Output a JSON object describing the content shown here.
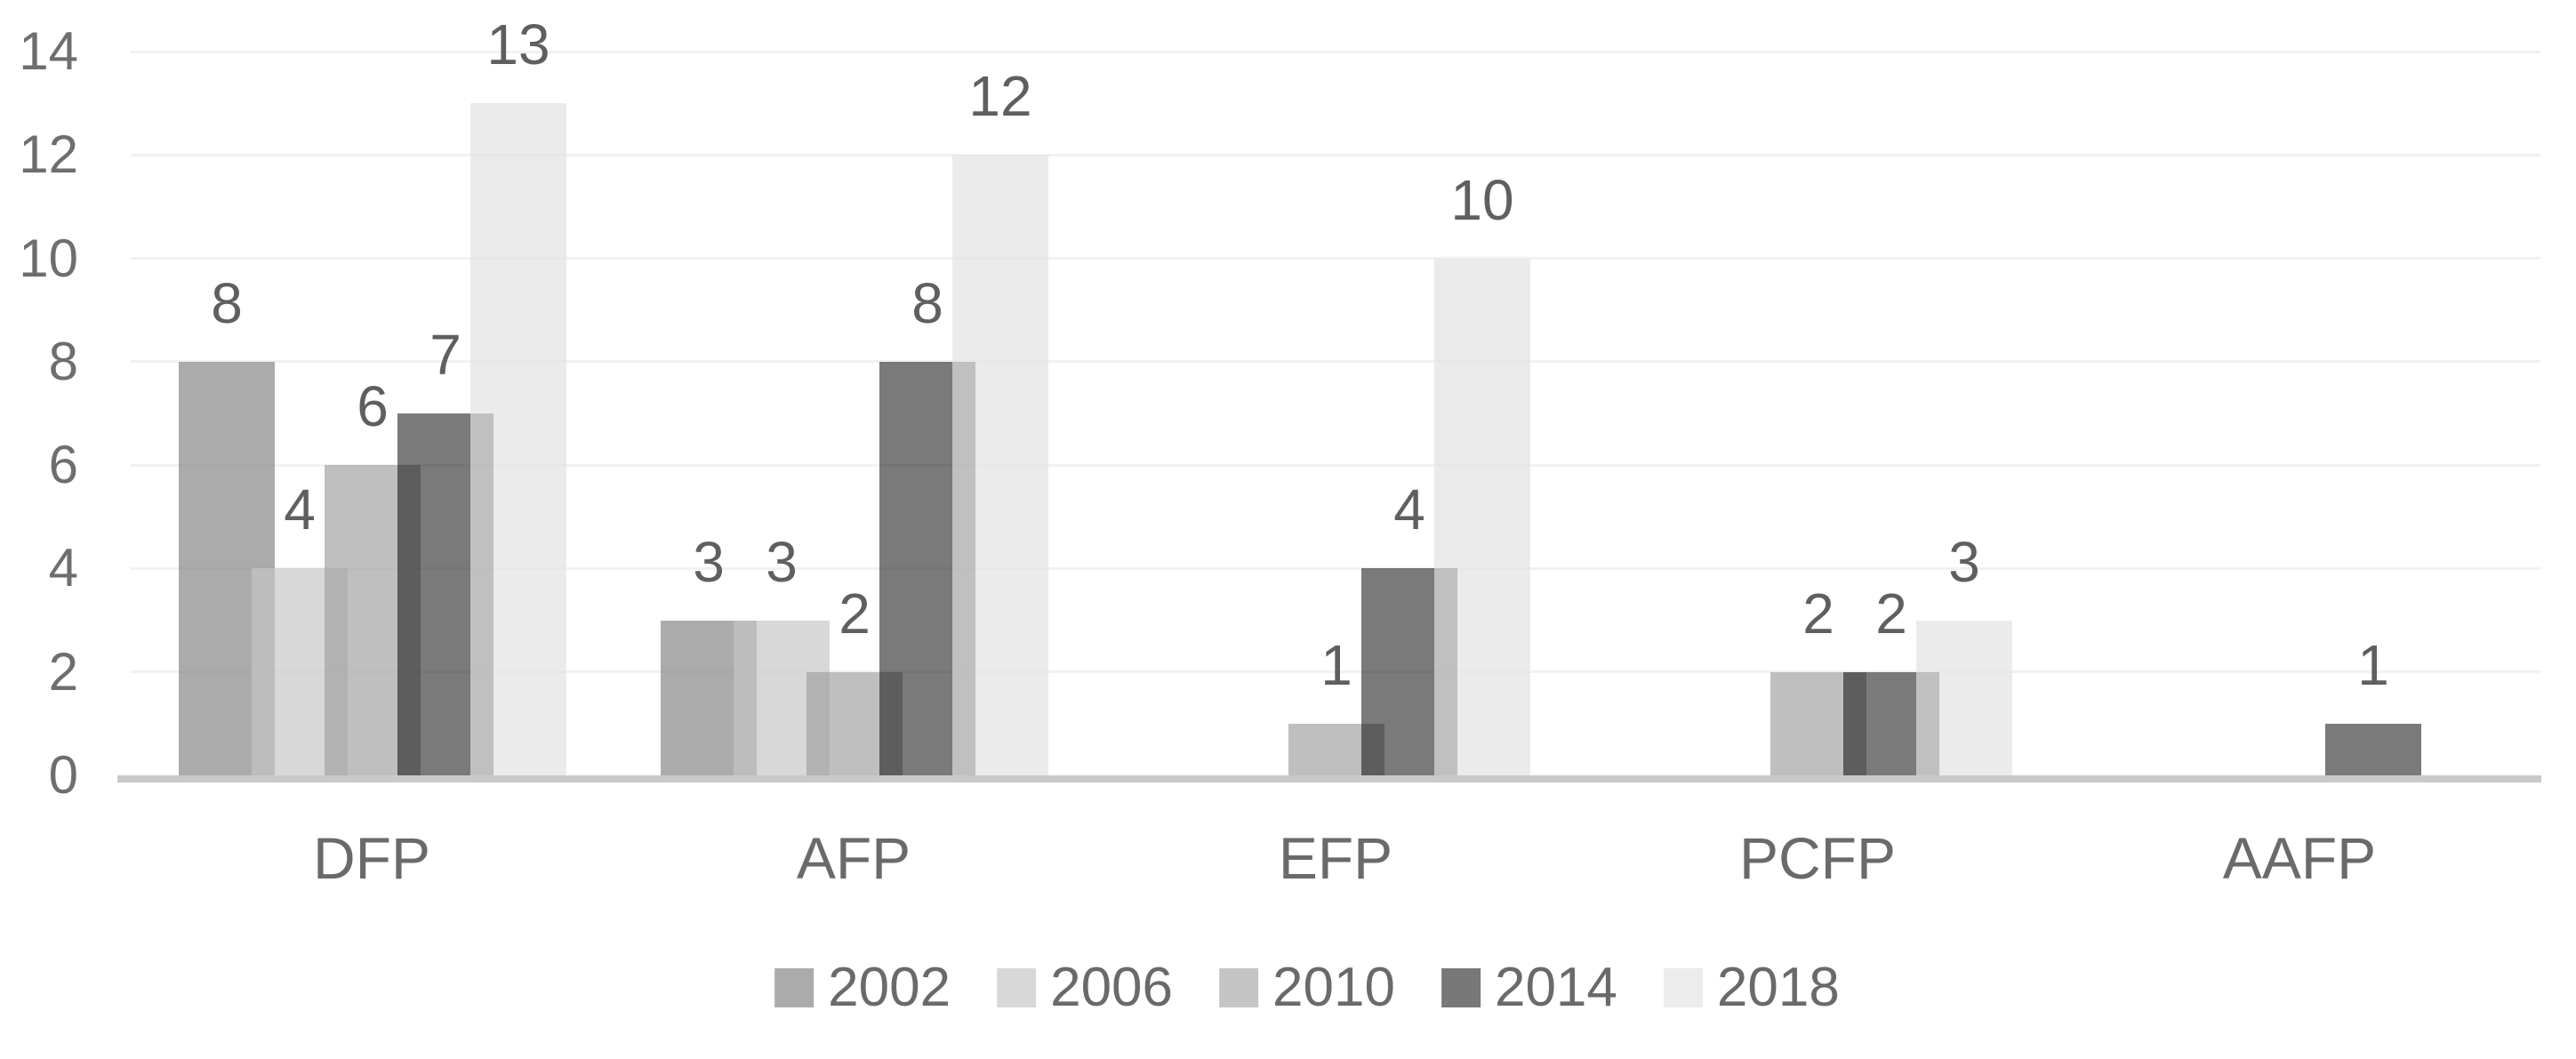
{
  "chart_data": {
    "type": "bar",
    "title": "",
    "xlabel": "",
    "ylabel": "",
    "categories": [
      "DFP",
      "AFP",
      "EFP",
      "PCFP",
      "AAFP"
    ],
    "series": [
      {
        "name": "2002",
        "values": [
          8,
          3,
          0,
          0,
          0
        ],
        "legend_color": "#ababab",
        "fill_rgba": "rgba(135,135,135,0.70)"
      },
      {
        "name": "2006",
        "values": [
          4,
          3,
          0,
          0,
          0
        ],
        "legend_color": "#d8d8d8",
        "fill_rgba": "rgba(197,197,197,0.68)"
      },
      {
        "name": "2010",
        "values": [
          6,
          2,
          1,
          2,
          0
        ],
        "legend_color": "#c5c5c5",
        "fill_rgba": "rgba(160,160,160,0.67)"
      },
      {
        "name": "2014",
        "values": [
          7,
          8,
          4,
          2,
          1
        ],
        "legend_color": "#787878",
        "fill_rgba": "rgba(10,10,10,0.54)"
      },
      {
        "name": "2018",
        "values": [
          13,
          12,
          10,
          3,
          0
        ],
        "legend_color": "#ececec",
        "fill_rgba": "rgba(226,226,226,0.68)"
      }
    ],
    "y_axis": {
      "min": 0,
      "max": 14,
      "tick_interval": 2,
      "tick_labels": [
        "0",
        "2",
        "4",
        "6",
        "8",
        "10",
        "12",
        "14"
      ]
    },
    "grid": true,
    "data_labels": true,
    "show_zero_labels": false,
    "legend_position": "bottom",
    "bar_overlap_percent": 24,
    "colors": {
      "axis_text": "#6e6e6e",
      "category_text": "#6a6a6a",
      "data_label_text": "#5f5f5f",
      "gridline": "#f1f1f1",
      "axis_line": "#c9c9c9",
      "background": "#ffffff"
    }
  }
}
